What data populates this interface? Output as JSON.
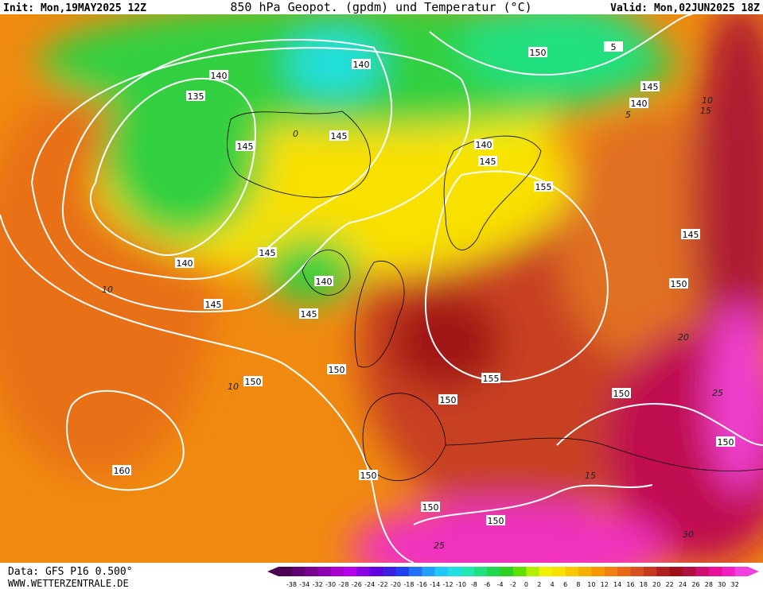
{
  "header": {
    "init": "Init: Mon,19MAY2025 12Z",
    "title": "850 hPa Geopot. (gpdm) und Temperatur (°C)",
    "valid": "Valid: Mon,02JUN2025 18Z"
  },
  "footer": {
    "data": "Data: GFS P16 0.500°",
    "site": "WWW.WETTERZENTRALE.DE"
  },
  "colorbar": {
    "labels": [
      "-38",
      "-34",
      "-32",
      "-30",
      "-28",
      "-26",
      "-24",
      "-22",
      "-20",
      "-18",
      "-16",
      "-14",
      "-12",
      "-10",
      "-8",
      "-6",
      "-4",
      "-2",
      "0",
      "2",
      "4",
      "6",
      "8",
      "10",
      "12",
      "14",
      "16",
      "18",
      "20",
      "22",
      "24",
      "26",
      "28",
      "30",
      "32"
    ],
    "colors": [
      "#4b0050",
      "#600070",
      "#7a0090",
      "#9000b0",
      "#a800d0",
      "#b800e8",
      "#8a00e0",
      "#6000e0",
      "#3c20e0",
      "#2040f0",
      "#2070f8",
      "#20a0f8",
      "#20c8f8",
      "#20e0e0",
      "#20e8b0",
      "#20e080",
      "#20d850",
      "#30d020",
      "#60e000",
      "#b0f000",
      "#f0f000",
      "#f8e000",
      "#f8c800",
      "#f8b000",
      "#f89800",
      "#f08010",
      "#e86818",
      "#d85020",
      "#c83820",
      "#b02020",
      "#a01018",
      "#b01040",
      "#d01070",
      "#e81098",
      "#f020c0",
      "#f040e0"
    ]
  },
  "contour_labels": [
    140,
    135,
    140,
    150,
    5,
    145,
    140,
    145,
    145,
    140,
    145,
    155,
    145,
    140,
    145,
    140,
    150,
    145,
    145,
    150,
    150,
    155,
    150,
    150,
    160,
    150,
    150,
    150,
    150
  ],
  "isotherm_labels": [
    10,
    15,
    10,
    10,
    20,
    25,
    30,
    25,
    15,
    5,
    0
  ]
}
